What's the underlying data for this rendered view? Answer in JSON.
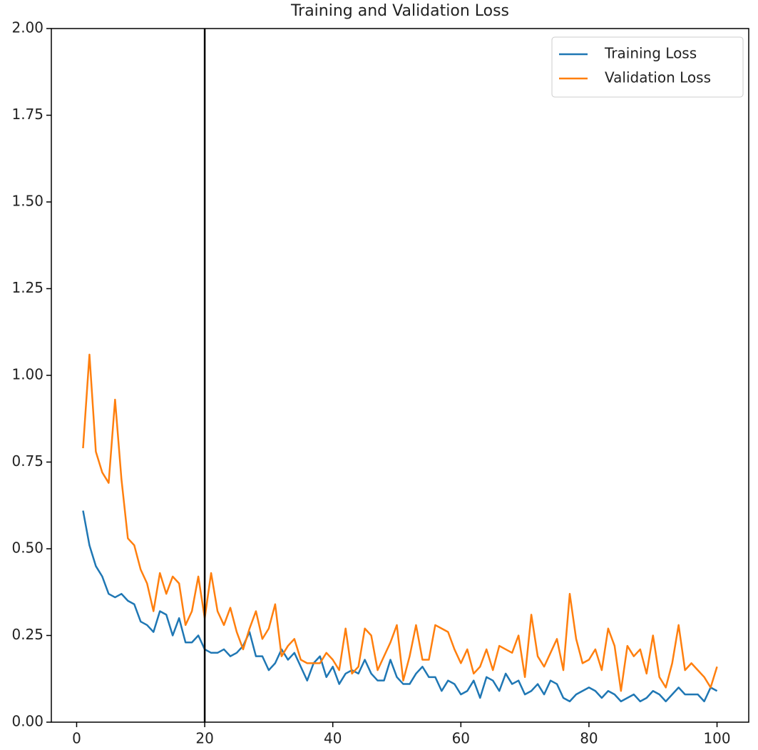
{
  "chart_data": {
    "type": "line",
    "title": "Training and Validation Loss",
    "x": [
      1,
      2,
      3,
      4,
      5,
      6,
      7,
      8,
      9,
      10,
      11,
      12,
      13,
      14,
      15,
      16,
      17,
      18,
      19,
      20,
      21,
      22,
      23,
      24,
      25,
      26,
      27,
      28,
      29,
      30,
      31,
      32,
      33,
      34,
      35,
      36,
      37,
      38,
      39,
      40,
      41,
      42,
      43,
      44,
      45,
      46,
      47,
      48,
      49,
      50,
      51,
      52,
      53,
      54,
      55,
      56,
      57,
      58,
      59,
      60,
      61,
      62,
      63,
      64,
      65,
      66,
      67,
      68,
      69,
      70,
      71,
      72,
      73,
      74,
      75,
      76,
      77,
      78,
      79,
      80,
      81,
      82,
      83,
      84,
      85,
      86,
      87,
      88,
      89,
      90,
      91,
      92,
      93,
      94,
      95,
      96,
      97,
      98,
      99,
      100
    ],
    "series": [
      {
        "name": "Training Loss",
        "color": "#1f77b4",
        "values": [
          0.61,
          0.51,
          0.45,
          0.42,
          0.37,
          0.36,
          0.37,
          0.35,
          0.34,
          0.29,
          0.28,
          0.26,
          0.32,
          0.31,
          0.25,
          0.3,
          0.23,
          0.23,
          0.25,
          0.21,
          0.2,
          0.2,
          0.21,
          0.19,
          0.2,
          0.22,
          0.26,
          0.19,
          0.19,
          0.15,
          0.17,
          0.21,
          0.18,
          0.2,
          0.16,
          0.12,
          0.17,
          0.19,
          0.13,
          0.16,
          0.11,
          0.14,
          0.15,
          0.14,
          0.18,
          0.14,
          0.12,
          0.12,
          0.18,
          0.13,
          0.11,
          0.11,
          0.14,
          0.16,
          0.13,
          0.13,
          0.09,
          0.12,
          0.11,
          0.08,
          0.09,
          0.12,
          0.07,
          0.13,
          0.12,
          0.09,
          0.14,
          0.11,
          0.12,
          0.08,
          0.09,
          0.11,
          0.08,
          0.12,
          0.11,
          0.07,
          0.06,
          0.08,
          0.09,
          0.1,
          0.09,
          0.07,
          0.09,
          0.08,
          0.06,
          0.07,
          0.08,
          0.06,
          0.07,
          0.09,
          0.08,
          0.06,
          0.08,
          0.1,
          0.08,
          0.08,
          0.08,
          0.06,
          0.1,
          0.09
        ]
      },
      {
        "name": "Validation Loss",
        "color": "#ff7f0e",
        "values": [
          0.79,
          1.06,
          0.78,
          0.72,
          0.69,
          0.93,
          0.7,
          0.53,
          0.51,
          0.44,
          0.4,
          0.32,
          0.43,
          0.37,
          0.42,
          0.4,
          0.28,
          0.32,
          0.42,
          0.3,
          0.43,
          0.32,
          0.28,
          0.33,
          0.26,
          0.21,
          0.27,
          0.32,
          0.24,
          0.27,
          0.34,
          0.19,
          0.22,
          0.24,
          0.18,
          0.17,
          0.17,
          0.17,
          0.2,
          0.18,
          0.15,
          0.27,
          0.14,
          0.16,
          0.27,
          0.25,
          0.15,
          0.19,
          0.23,
          0.28,
          0.12,
          0.19,
          0.28,
          0.18,
          0.18,
          0.28,
          0.27,
          0.26,
          0.21,
          0.17,
          0.21,
          0.14,
          0.16,
          0.21,
          0.15,
          0.22,
          0.21,
          0.2,
          0.25,
          0.13,
          0.31,
          0.19,
          0.16,
          0.2,
          0.24,
          0.15,
          0.37,
          0.24,
          0.17,
          0.18,
          0.21,
          0.15,
          0.27,
          0.22,
          0.09,
          0.22,
          0.19,
          0.21,
          0.14,
          0.25,
          0.13,
          0.1,
          0.17,
          0.28,
          0.15,
          0.17,
          0.15,
          0.13,
          0.1,
          0.16
        ]
      }
    ],
    "vline_x": 20,
    "vline_color": "#000000",
    "xlim": [
      -3.95,
      104.95
    ],
    "xticks": [
      0,
      20,
      40,
      60,
      80,
      100
    ],
    "ylim": [
      0,
      2
    ],
    "yticks": [
      {
        "value": 0,
        "label": "0.00"
      },
      {
        "value": 0.25,
        "label": "0.25"
      },
      {
        "value": 0.5,
        "label": "0.50"
      },
      {
        "value": 0.75,
        "label": "0.75"
      },
      {
        "value": 1,
        "label": "1.00"
      },
      {
        "value": 1.25,
        "label": "1.25"
      },
      {
        "value": 1.5,
        "label": "1.50"
      },
      {
        "value": 1.75,
        "label": "1.75"
      },
      {
        "value": 2,
        "label": "2.00"
      }
    ],
    "legend": "upper right",
    "grid": false
  }
}
